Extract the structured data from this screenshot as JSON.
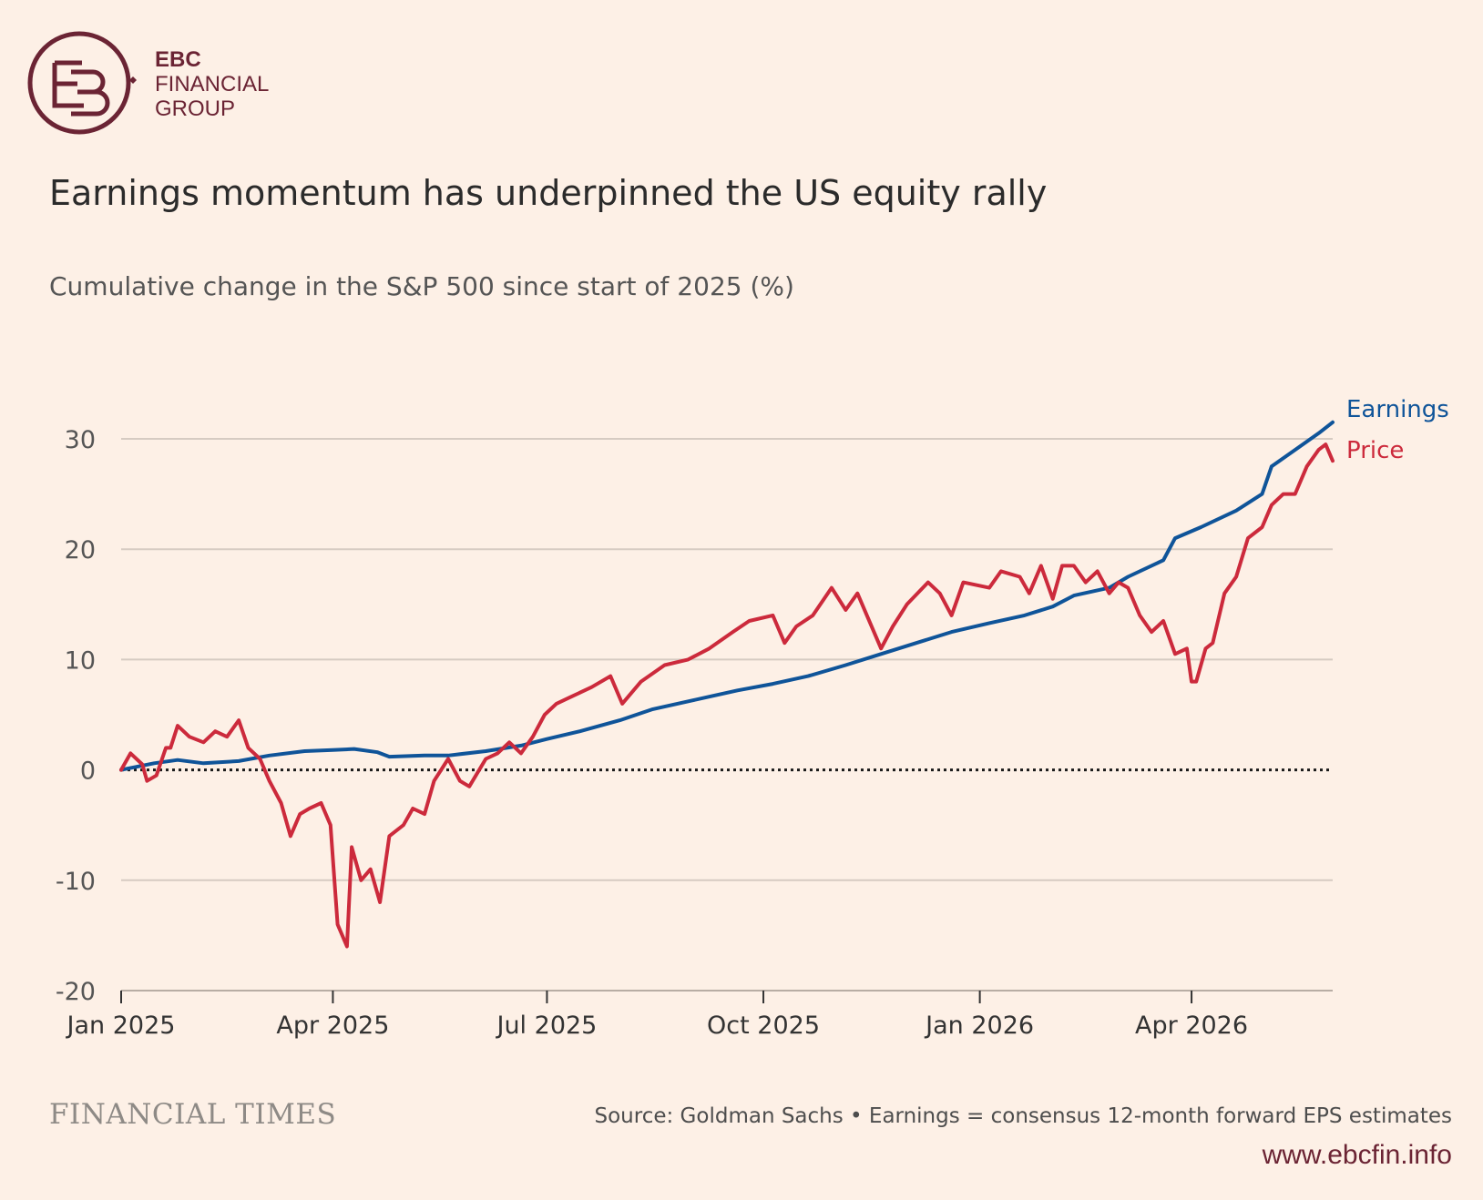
{
  "logo": {
    "line1": "EBC",
    "line2": "FINANCIAL",
    "line3": "GROUP",
    "color": "#6b2434",
    "icon": "ebc-monogram-icon"
  },
  "chart_data": {
    "type": "line",
    "title": "Earnings momentum has underpinned the US equity rally",
    "subtitle": "Cumulative change in the S&P 500 since start of 2025 (%)",
    "ylim": [
      -20,
      30
    ],
    "yticks": [
      30,
      20,
      10,
      0,
      -10,
      -20
    ],
    "xticks": [
      "Jan 2025",
      "Apr 2025",
      "Jul 2025",
      "Oct 2025",
      "Jan 2026",
      "Apr 2026"
    ],
    "x_range": [
      "2025-01-01",
      "2026-05-31"
    ],
    "zero_line": "dotted",
    "grid": true,
    "legend": "direct labels at line ends",
    "series": [
      {
        "name": "Earnings",
        "color": "#0f5499",
        "points": [
          [
            "2025-01-01",
            0
          ],
          [
            "2025-01-15",
            0.6
          ],
          [
            "2025-01-25",
            0.9
          ],
          [
            "2025-02-05",
            0.6
          ],
          [
            "2025-02-20",
            0.8
          ],
          [
            "2025-03-05",
            1.3
          ],
          [
            "2025-03-20",
            1.7
          ],
          [
            "2025-04-01",
            1.8
          ],
          [
            "2025-04-10",
            1.9
          ],
          [
            "2025-04-20",
            1.6
          ],
          [
            "2025-04-25",
            1.2
          ],
          [
            "2025-05-10",
            1.3
          ],
          [
            "2025-05-20",
            1.3
          ],
          [
            "2025-06-05",
            1.7
          ],
          [
            "2025-06-20",
            2.2
          ],
          [
            "2025-07-01",
            2.8
          ],
          [
            "2025-07-15",
            3.5
          ],
          [
            "2025-08-01",
            4.5
          ],
          [
            "2025-08-15",
            5.5
          ],
          [
            "2025-09-01",
            6.3
          ],
          [
            "2025-09-20",
            7.2
          ],
          [
            "2025-10-05",
            7.8
          ],
          [
            "2025-10-20",
            8.5
          ],
          [
            "2025-11-05",
            9.5
          ],
          [
            "2025-11-20",
            10.5
          ],
          [
            "2025-12-05",
            11.5
          ],
          [
            "2025-12-20",
            12.5
          ],
          [
            "2026-01-05",
            13.3
          ],
          [
            "2026-01-20",
            14.0
          ],
          [
            "2026-02-01",
            14.8
          ],
          [
            "2026-02-10",
            15.8
          ],
          [
            "2026-02-25",
            16.5
          ],
          [
            "2026-03-05",
            17.5
          ],
          [
            "2026-03-20",
            19.0
          ],
          [
            "2026-03-25",
            21.0
          ],
          [
            "2026-04-05",
            22.0
          ],
          [
            "2026-04-20",
            23.5
          ],
          [
            "2026-05-01",
            25.0
          ],
          [
            "2026-05-05",
            27.5
          ],
          [
            "2026-05-15",
            29.0
          ],
          [
            "2026-05-25",
            30.5
          ],
          [
            "2026-05-31",
            31.5
          ]
        ]
      },
      {
        "name": "Price",
        "color": "#cc2a3c",
        "points": [
          [
            "2025-01-01",
            0
          ],
          [
            "2025-01-05",
            1.5
          ],
          [
            "2025-01-10",
            0.5
          ],
          [
            "2025-01-12",
            -1
          ],
          [
            "2025-01-16",
            -0.5
          ],
          [
            "2025-01-20",
            2
          ],
          [
            "2025-01-22",
            2
          ],
          [
            "2025-01-25",
            4
          ],
          [
            "2025-01-30",
            3
          ],
          [
            "2025-02-05",
            2.5
          ],
          [
            "2025-02-10",
            3.5
          ],
          [
            "2025-02-15",
            3
          ],
          [
            "2025-02-20",
            4.5
          ],
          [
            "2025-02-24",
            2
          ],
          [
            "2025-03-01",
            1
          ],
          [
            "2025-03-05",
            -1
          ],
          [
            "2025-03-10",
            -3
          ],
          [
            "2025-03-14",
            -6
          ],
          [
            "2025-03-18",
            -4
          ],
          [
            "2025-03-22",
            -3.5
          ],
          [
            "2025-03-27",
            -3
          ],
          [
            "2025-03-31",
            -5
          ],
          [
            "2025-04-03",
            -14
          ],
          [
            "2025-04-07",
            -16
          ],
          [
            "2025-04-09",
            -7
          ],
          [
            "2025-04-13",
            -10
          ],
          [
            "2025-04-17",
            -9
          ],
          [
            "2025-04-21",
            -12
          ],
          [
            "2025-04-25",
            -6
          ],
          [
            "2025-05-01",
            -5
          ],
          [
            "2025-05-05",
            -3.5
          ],
          [
            "2025-05-10",
            -4
          ],
          [
            "2025-05-14",
            -1
          ],
          [
            "2025-05-20",
            1
          ],
          [
            "2025-05-25",
            -1
          ],
          [
            "2025-05-29",
            -1.5
          ],
          [
            "2025-06-05",
            1
          ],
          [
            "2025-06-10",
            1.5
          ],
          [
            "2025-06-15",
            2.5
          ],
          [
            "2025-06-20",
            1.5
          ],
          [
            "2025-06-25",
            3
          ],
          [
            "2025-06-30",
            5
          ],
          [
            "2025-07-05",
            6
          ],
          [
            "2025-07-10",
            6.5
          ],
          [
            "2025-07-20",
            7.5
          ],
          [
            "2025-07-28",
            8.5
          ],
          [
            "2025-08-02",
            6
          ],
          [
            "2025-08-10",
            8
          ],
          [
            "2025-08-20",
            9.5
          ],
          [
            "2025-08-30",
            10
          ],
          [
            "2025-09-08",
            11
          ],
          [
            "2025-09-18",
            12.5
          ],
          [
            "2025-09-25",
            13.5
          ],
          [
            "2025-10-05",
            14
          ],
          [
            "2025-10-10",
            11.5
          ],
          [
            "2025-10-15",
            13
          ],
          [
            "2025-10-22",
            14
          ],
          [
            "2025-10-30",
            16.5
          ],
          [
            "2025-11-05",
            14.5
          ],
          [
            "2025-11-10",
            16
          ],
          [
            "2025-11-20",
            11
          ],
          [
            "2025-11-25",
            13
          ],
          [
            "2025-12-01",
            15
          ],
          [
            "2025-12-10",
            17
          ],
          [
            "2025-12-15",
            16
          ],
          [
            "2025-12-20",
            14
          ],
          [
            "2025-12-25",
            17
          ],
          [
            "2026-01-05",
            16.5
          ],
          [
            "2026-01-10",
            18
          ],
          [
            "2026-01-18",
            17.5
          ],
          [
            "2026-01-22",
            16
          ],
          [
            "2026-01-27",
            18.5
          ],
          [
            "2026-02-01",
            15.5
          ],
          [
            "2026-02-05",
            18.5
          ],
          [
            "2026-02-10",
            18.5
          ],
          [
            "2026-02-15",
            17
          ],
          [
            "2026-02-20",
            18
          ],
          [
            "2026-02-25",
            16
          ],
          [
            "2026-03-01",
            17
          ],
          [
            "2026-03-05",
            16.5
          ],
          [
            "2026-03-10",
            14
          ],
          [
            "2026-03-15",
            12.5
          ],
          [
            "2026-03-20",
            13.5
          ],
          [
            "2026-03-25",
            10.5
          ],
          [
            "2026-03-30",
            11
          ],
          [
            "2026-04-01",
            8
          ],
          [
            "2026-04-03",
            8
          ],
          [
            "2026-04-07",
            11
          ],
          [
            "2026-04-10",
            11.5
          ],
          [
            "2026-04-15",
            16
          ],
          [
            "2026-04-20",
            17.5
          ],
          [
            "2026-04-25",
            21
          ],
          [
            "2026-05-01",
            22
          ],
          [
            "2026-05-05",
            24
          ],
          [
            "2026-05-10",
            25
          ],
          [
            "2026-05-15",
            25
          ],
          [
            "2026-05-20",
            27.5
          ],
          [
            "2026-05-25",
            29
          ],
          [
            "2026-05-28",
            29.5
          ],
          [
            "2026-05-31",
            28
          ]
        ]
      }
    ]
  },
  "footer": {
    "brand": "FINANCIAL TIMES",
    "source": "Source: Goldman Sachs • Earnings = consensus 12-month forward EPS estimates",
    "url": "www.ebcfin.info"
  }
}
